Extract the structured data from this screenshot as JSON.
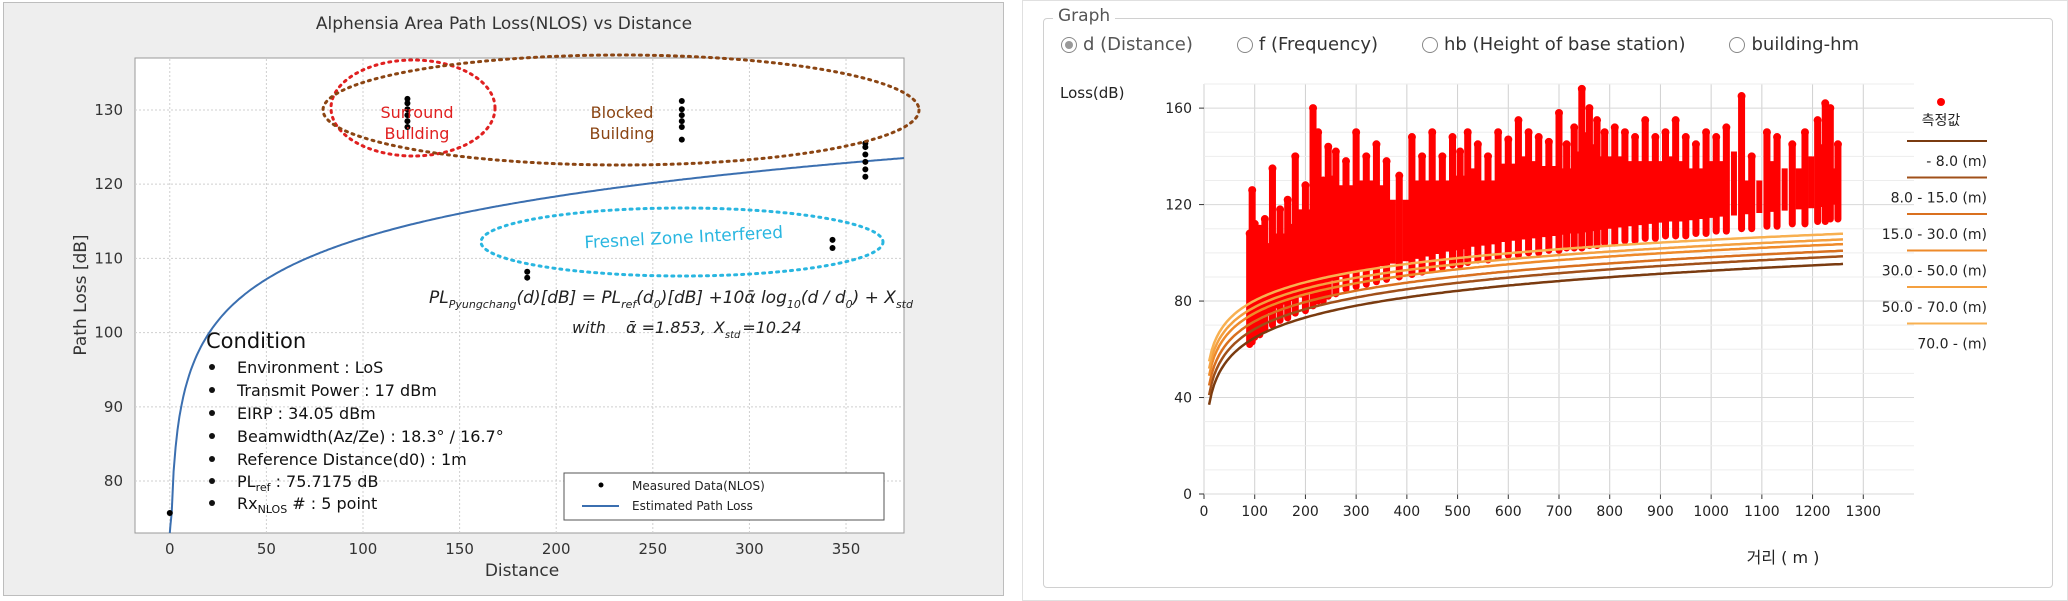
{
  "left_chart": {
    "title": "Alphensia Area Path Loss(NLOS) vs Distance",
    "xlabel": "Distance",
    "ylabel": "Path Loss [dB]",
    "x_ticks": [
      "0",
      "50",
      "100",
      "150",
      "200",
      "250",
      "300",
      "350"
    ],
    "y_ticks": [
      "80",
      "90",
      "100",
      "110",
      "120",
      "130"
    ],
    "annotations": {
      "surround": [
        "Surround",
        "Building"
      ],
      "blocked": [
        "Blocked",
        "Building"
      ],
      "fresnel": "Fresnel Zone Interfered"
    },
    "formula": {
      "line1": "PL",
      "line1_sub": "Pyungchang",
      "line1_rest": "(d)[dB] = PL",
      "line1_sub2": "ref",
      "line1_rest2": "(d",
      "line1_sub3": "0",
      "line1_rest3": ")[dB] +10ᾱ log",
      "line1_sub4": "10",
      "line1_rest4": "(d / d",
      "line1_sub5": "0",
      "line1_rest5": ") + X",
      "line1_sub6": "std",
      "line2_with": "with",
      "line2_alpha": "ᾱ =1.853,",
      "line2_x": "X",
      "line2_xsub": "std",
      "line2_xval": "=10.24"
    },
    "condition": {
      "heading": "Condition",
      "items": [
        "Environment : LoS",
        "Transmit Power : 17 dBm",
        "EIRP : 34.05 dBm",
        "Beamwidth(Az/Ze) : 18.3° / 16.7°",
        "Reference Distance(d0) : 1m",
        "PLref : 75.7175 dB",
        "RxNLOS # : 5 point"
      ],
      "pl_main": "PL",
      "pl_sub": "ref",
      "pl_rest": " : 75.7175 dB",
      "rx_main": "Rx",
      "rx_sub": "NLOS",
      "rx_rest": " # : 5 point"
    },
    "legend": [
      "Measured Data(NLOS)",
      "Estimated Path Loss"
    ],
    "colors": {
      "curve": "#3b6fb0",
      "points": "#000000",
      "surround": "#e02020",
      "blocked": "#8b4513",
      "fresnel": "#29b6e0"
    }
  },
  "right_panel": {
    "group_title": "Graph",
    "radios": [
      {
        "label": "d (Distance)",
        "checked": true
      },
      {
        "label": "f (Frequency)",
        "checked": false
      },
      {
        "label": "hb (Height of base station)",
        "checked": false
      },
      {
        "label": "building-hm",
        "checked": false
      }
    ],
    "ylabel": "Loss(dB)",
    "xlabel": "거리 ( m )",
    "y_ticks": [
      "0",
      "40",
      "80",
      "120",
      "160"
    ],
    "x_ticks": [
      "0",
      "100",
      "200",
      "300",
      "400",
      "500",
      "600",
      "700",
      "800",
      "900",
      "1000",
      "1100",
      "1200",
      "1300"
    ],
    "legend_measured": "측정값",
    "legend_items": [
      {
        "label": "- 8.0 (m)",
        "color": "#7a3b10"
      },
      {
        "label": "8.0 - 15.0 (m)",
        "color": "#a0501a"
      },
      {
        "label": "15.0 - 30.0 (m)",
        "color": "#d9701f"
      },
      {
        "label": "30.0 - 50.0 (m)",
        "color": "#ee8a2a"
      },
      {
        "label": "50.0 - 70.0 (m)",
        "color": "#f4a040"
      },
      {
        "label": "70.0 - (m)",
        "color": "#f8b050"
      }
    ]
  },
  "chart_data": [
    {
      "type": "scatter",
      "title": "Alphensia Area Path Loss(NLOS) vs Distance",
      "xlabel": "Distance",
      "ylabel": "Path Loss [dB]",
      "xlim": [
        -18,
        380
      ],
      "ylim": [
        73,
        137
      ],
      "series": [
        {
          "name": "Measured Data(NLOS)",
          "kind": "points",
          "x": [
            0,
            123,
            123,
            123,
            123,
            123,
            123,
            185,
            185,
            265,
            265,
            265,
            265,
            265,
            265,
            343,
            343,
            360,
            360,
            360,
            360,
            360,
            360
          ],
          "y": [
            75.7,
            127.7,
            128.5,
            129.3,
            130.1,
            130.9,
            131.5,
            107.4,
            108.2,
            126.0,
            127.7,
            128.5,
            129.3,
            130.1,
            131.2,
            111.4,
            112.5,
            121.0,
            122.0,
            123.0,
            124.0,
            125.0,
            125.5
          ]
        },
        {
          "name": "Estimated Path Loss",
          "kind": "curve",
          "alpha": 1.853,
          "pl_ref": 75.7175
        }
      ]
    },
    {
      "type": "scatter",
      "xlabel": "거리 ( m )",
      "ylabel": "Loss(dB)",
      "xlim": [
        0,
        1400
      ],
      "ylim": [
        0,
        170
      ],
      "series": [
        {
          "name": "측정값",
          "kind": "points",
          "color": "#ff0000",
          "x": [
            90,
            95,
            100,
            110,
            120,
            135,
            150,
            165,
            180,
            200,
            215,
            225,
            235,
            245,
            260,
            280,
            300,
            320,
            340,
            360,
            385,
            410,
            430,
            450,
            470,
            490,
            505,
            520,
            540,
            560,
            580,
            600,
            620,
            640,
            660,
            680,
            700,
            715,
            730,
            745,
            760,
            775,
            790,
            810,
            830,
            850,
            870,
            890,
            910,
            930,
            950,
            970,
            990,
            1010,
            1030,
            1060,
            1080,
            1110,
            1130,
            1160,
            1185,
            1210,
            1225,
            1235,
            1250
          ],
          "y_min": [
            62,
            63,
            65,
            66,
            68,
            70,
            72,
            73,
            75,
            76,
            78,
            80,
            80,
            82,
            83,
            85,
            86,
            87,
            88,
            89,
            90,
            91,
            92,
            93,
            94,
            95,
            95,
            96,
            97,
            97,
            98,
            99,
            99,
            100,
            100,
            101,
            101,
            102,
            102,
            102,
            103,
            103,
            104,
            104,
            105,
            105,
            106,
            106,
            107,
            107,
            107,
            108,
            108,
            109,
            109,
            110,
            110,
            111,
            111,
            112,
            112,
            113,
            113,
            114,
            114
          ],
          "y_max": [
            108,
            126,
            112,
            110,
            114,
            135,
            118,
            122,
            140,
            128,
            160,
            150,
            130,
            144,
            142,
            138,
            150,
            140,
            145,
            138,
            132,
            148,
            140,
            150,
            140,
            148,
            142,
            150,
            145,
            140,
            150,
            147,
            155,
            150,
            148,
            146,
            158,
            145,
            152,
            168,
            160,
            155,
            150,
            152,
            150,
            148,
            155,
            148,
            150,
            155,
            148,
            145,
            150,
            148,
            152,
            165,
            140,
            150,
            148,
            145,
            150,
            155,
            162,
            160,
            145
          ]
        },
        {
          "name": "- 8.0 (m)",
          "kind": "curve",
          "a": 37,
          "b": 27.8
        },
        {
          "name": "8.0 - 15.0 (m)",
          "kind": "curve",
          "a": 41,
          "b": 27.4
        },
        {
          "name": "15.0 - 30.0 (m)",
          "kind": "curve",
          "a": 45,
          "b": 26.6
        },
        {
          "name": "30.0 - 50.0 (m)",
          "kind": "curve",
          "a": 49,
          "b": 26.0
        },
        {
          "name": "50.0 - 70.0 (m)",
          "kind": "curve",
          "a": 52,
          "b": 25.5
        },
        {
          "name": "70.0 - (m)",
          "kind": "curve",
          "a": 55,
          "b": 25.2
        }
      ]
    }
  ]
}
